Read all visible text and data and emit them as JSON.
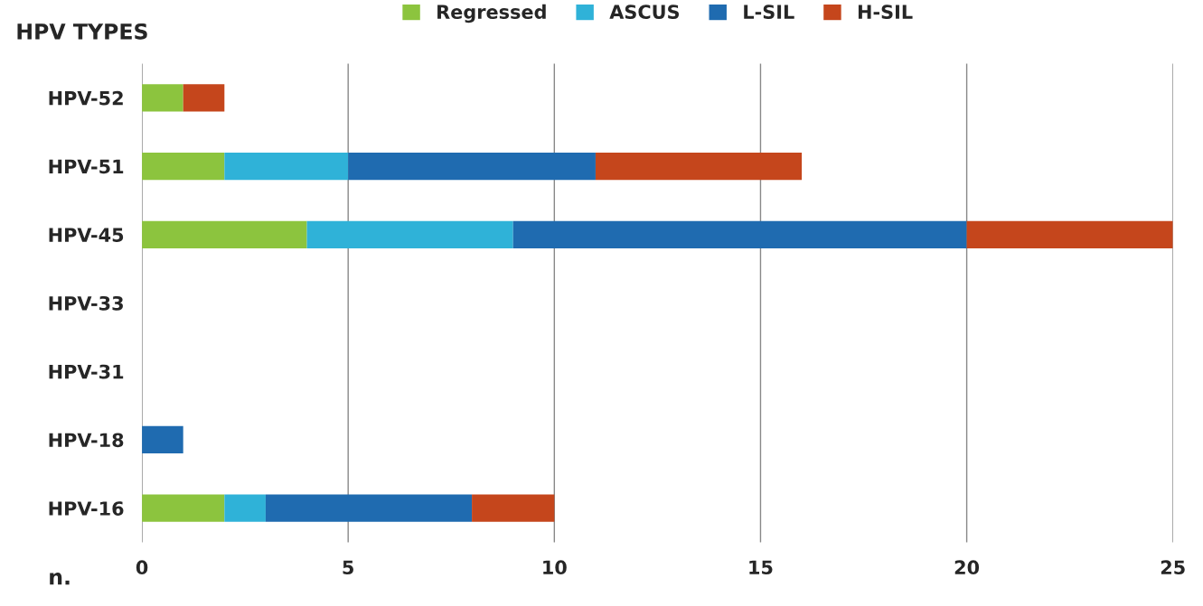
{
  "chart_data": {
    "type": "bar",
    "orientation": "horizontal",
    "stacked": true,
    "ylabel": "HPV TYPES",
    "xlabel": "n.",
    "categories": [
      "HPV-52",
      "HPV-51",
      "HPV-45",
      "HPV-33",
      "HPV-31",
      "HPV-18",
      "HPV-16"
    ],
    "series": [
      {
        "name": "Regressed",
        "color": "#8cc43e",
        "values": [
          1,
          2,
          4,
          0,
          0,
          0,
          2
        ]
      },
      {
        "name": "ASCUS",
        "color": "#2fb2d8",
        "values": [
          0,
          3,
          5,
          0,
          0,
          0,
          1
        ]
      },
      {
        "name": "L-SIL",
        "color": "#1f6bb0",
        "values": [
          0,
          6,
          11,
          0,
          0,
          1,
          5
        ]
      },
      {
        "name": "H-SIL",
        "color": "#c5461c",
        "values": [
          1,
          5,
          5,
          0,
          0,
          0,
          2
        ]
      }
    ],
    "xlim": [
      0,
      25
    ],
    "xticks": [
      0,
      5,
      10,
      15,
      20,
      25
    ],
    "grid": "x",
    "legend": "top"
  }
}
